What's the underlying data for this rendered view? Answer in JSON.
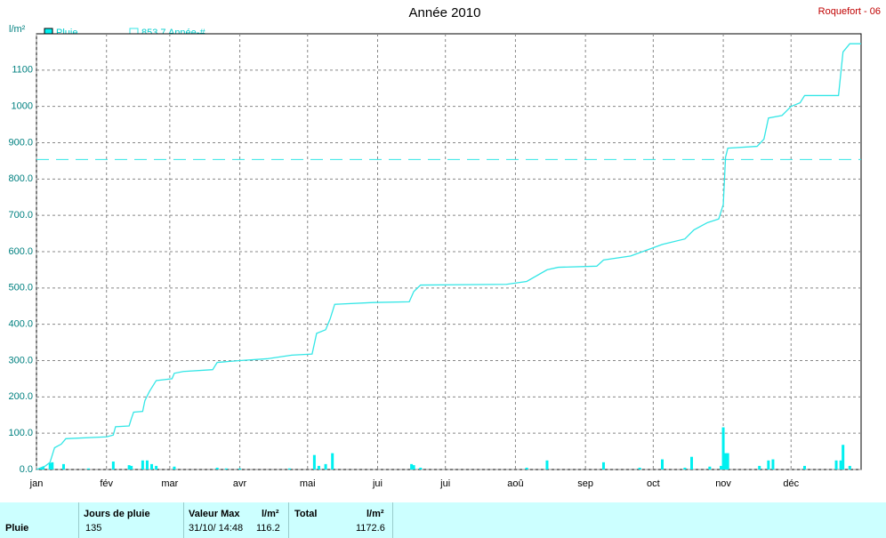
{
  "chart_data": {
    "type": "rain",
    "title": "Année 2010",
    "station": "Roquefort - 06",
    "y_unit": "l/m²",
    "xlim": [
      0,
      365
    ],
    "ylim": [
      0,
      1200
    ],
    "xticks": [
      {
        "value": 0,
        "label": "jan"
      },
      {
        "value": 31,
        "label": "fév"
      },
      {
        "value": 59,
        "label": "mar"
      },
      {
        "value": 90,
        "label": "avr"
      },
      {
        "value": 120,
        "label": "mai"
      },
      {
        "value": 151,
        "label": "jui"
      },
      {
        "value": 181,
        "label": "jui"
      },
      {
        "value": 212,
        "label": "aoû"
      },
      {
        "value": 243,
        "label": "sep"
      },
      {
        "value": 273,
        "label": "oct"
      },
      {
        "value": 304,
        "label": "nov"
      },
      {
        "value": 334,
        "label": "déc"
      }
    ],
    "yticks": [
      {
        "value": 0,
        "label": "0.0"
      },
      {
        "value": 100,
        "label": "100.0"
      },
      {
        "value": 200,
        "label": "200.0"
      },
      {
        "value": 300,
        "label": "300.0"
      },
      {
        "value": 400,
        "label": "400.0"
      },
      {
        "value": 500,
        "label": "500.0"
      },
      {
        "value": 600,
        "label": "600.0"
      },
      {
        "value": 700,
        "label": "700.0"
      },
      {
        "value": 800,
        "label": "800.0"
      },
      {
        "value": 900,
        "label": "900.0"
      },
      1000,
      1100
    ],
    "grid": true,
    "bars": {
      "name": "Pluie",
      "color": "#00f0f0",
      "x": [
        2,
        3,
        6,
        7,
        12,
        23,
        34,
        41,
        42,
        47,
        49,
        51,
        53,
        61,
        80,
        84,
        90,
        112,
        123,
        125,
        128,
        131,
        166,
        167,
        170,
        217,
        226,
        251,
        267,
        277,
        287,
        290,
        298,
        303,
        304,
        305,
        306,
        320,
        324,
        326,
        340,
        354,
        356,
        357,
        360
      ],
      "values": [
        5,
        8,
        18,
        20,
        15,
        3,
        22,
        12,
        10,
        25,
        25,
        15,
        10,
        8,
        5,
        3,
        3,
        3,
        40,
        10,
        15,
        45,
        15,
        12,
        5,
        5,
        25,
        20,
        5,
        28,
        5,
        35,
        8,
        10,
        116.2,
        45,
        45,
        10,
        25,
        28,
        10,
        25,
        25,
        68,
        10
      ]
    },
    "cumulative": {
      "color": "#33e6e6",
      "x": [
        0,
        2,
        4,
        6,
        8,
        11,
        13,
        31,
        34,
        35,
        41,
        42,
        43,
        47,
        48,
        50,
        53,
        60,
        61,
        65,
        78,
        80,
        90,
        102,
        113,
        122,
        124,
        128,
        130,
        132,
        149,
        165,
        167,
        170,
        208,
        217,
        226,
        231,
        248,
        251,
        263,
        277,
        287,
        291,
        297,
        302,
        304,
        305,
        306,
        319,
        322,
        324,
        330,
        334,
        338,
        340,
        355,
        357,
        360,
        365
      ],
      "values": [
        0,
        5,
        10,
        20,
        60,
        70,
        85,
        90,
        95,
        118,
        120,
        140,
        158,
        160,
        190,
        215,
        245,
        250,
        265,
        270,
        275,
        295,
        300,
        305,
        315,
        318,
        375,
        385,
        415,
        455,
        460,
        462,
        490,
        508,
        510,
        518,
        550,
        557,
        560,
        577,
        588,
        620,
        635,
        660,
        680,
        690,
        730,
        860,
        885,
        890,
        910,
        968,
        975,
        1000,
        1010,
        1030,
        1030,
        1150,
        1172.6,
        1172.6
      ]
    },
    "reference": {
      "value": 853.7,
      "label": "853.7 Année-#",
      "color": "#33e6e6"
    }
  },
  "summary": {
    "row_label": "Pluie",
    "days_header": "Jours de pluie",
    "days": "135",
    "max_header": "Valeur Max",
    "max_unit": "l/m²",
    "max_date": "31/10/ 14:48",
    "max_value": "116.2",
    "total_header": "Total",
    "total_unit": "l/m²",
    "total_value": "1172.6"
  }
}
